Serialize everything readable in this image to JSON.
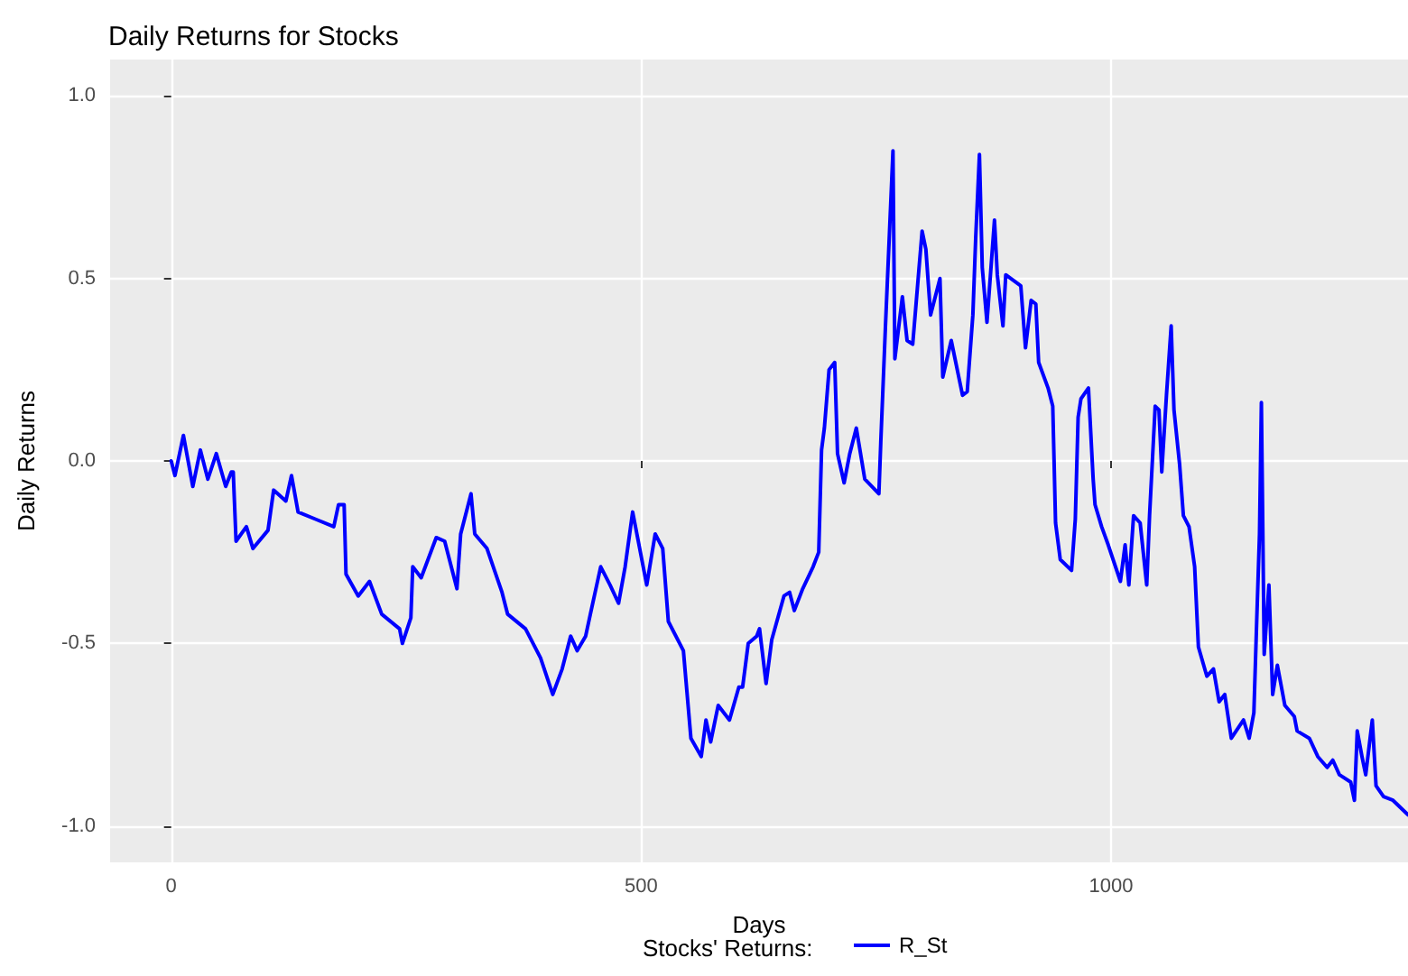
{
  "chart_data": {
    "type": "line",
    "title": "Daily Returns for Stocks",
    "xlabel": "Days",
    "ylabel": "Daily Returns",
    "legend_title": "Stocks' Returns:",
    "legend": "bottom",
    "grid": true,
    "xlim": [
      -65,
      1316
    ],
    "xticks": [
      0,
      500,
      1000
    ],
    "ylim": [
      -1.1,
      1.1
    ],
    "yticks": [
      {
        "value": -1,
        "label": "-1.0"
      },
      {
        "value": -0.5,
        "label": "-0.5"
      },
      {
        "value": 0,
        "label": "0.0"
      },
      {
        "value": 0.5,
        "label": "0.5"
      },
      {
        "value": 1,
        "label": "1.0"
      }
    ],
    "series": [
      {
        "name": "R_St",
        "color": "#0000ff",
        "x": [
          0,
          4,
          13,
          23,
          31,
          39,
          48,
          58,
          64,
          66,
          69,
          80,
          87,
          103,
          109,
          122,
          128,
          135,
          154,
          173,
          178,
          184,
          186,
          199,
          211,
          224,
          243,
          246,
          255,
          257,
          266,
          282,
          291,
          298,
          304,
          308,
          319,
          323,
          336,
          352,
          358,
          377,
          393,
          406,
          416,
          425,
          432,
          441,
          446,
          457,
          467,
          476,
          483,
          491,
          506,
          515,
          523,
          529,
          545,
          550,
          553,
          564,
          569,
          574,
          582,
          594,
          604,
          608,
          614,
          623,
          626,
          633,
          639,
          652,
          658,
          663,
          672,
          683,
          689,
          692,
          695,
          700,
          706,
          709,
          716,
          722,
          729,
          738,
          753,
          755,
          760,
          768,
          770,
          778,
          783,
          789,
          799,
          803,
          808,
          818,
          821,
          830,
          842,
          847,
          853,
          856,
          860,
          863,
          868,
          876,
          879,
          885,
          888,
          904,
          909,
          915,
          920,
          923,
          933,
          938,
          941,
          946,
          958,
          962,
          965,
          968,
          976,
          981,
          983,
          990,
          997,
          1010,
          1015,
          1019,
          1024,
          1031,
          1038,
          1041,
          1047,
          1051,
          1054,
          1059,
          1064,
          1067,
          1073,
          1077,
          1083,
          1089,
          1093,
          1102,
          1109,
          1115,
          1121,
          1128,
          1141,
          1147,
          1152,
          1155,
          1158,
          1160,
          1163,
          1168,
          1172,
          1177,
          1185,
          1195,
          1198,
          1211,
          1220,
          1230,
          1236,
          1243,
          1255,
          1259,
          1262,
          1267,
          1271,
          1278,
          1282,
          1290,
          1300,
          1316
        ],
        "values": [
          0.0,
          -0.04,
          0.07,
          -0.07,
          0.03,
          -0.05,
          0.02,
          -0.07,
          -0.03,
          -0.03,
          -0.22,
          -0.18,
          -0.24,
          -0.19,
          -0.08,
          -0.11,
          -0.04,
          -0.14,
          -0.16,
          -0.18,
          -0.12,
          -0.12,
          -0.31,
          -0.37,
          -0.33,
          -0.42,
          -0.46,
          -0.5,
          -0.43,
          -0.29,
          -0.32,
          -0.21,
          -0.22,
          -0.29,
          -0.35,
          -0.2,
          -0.09,
          -0.2,
          -0.24,
          -0.36,
          -0.42,
          -0.46,
          -0.54,
          -0.64,
          -0.57,
          -0.48,
          -0.52,
          -0.48,
          -0.42,
          -0.29,
          -0.34,
          -0.39,
          -0.29,
          -0.14,
          -0.34,
          -0.2,
          -0.24,
          -0.44,
          -0.52,
          -0.67,
          -0.76,
          -0.81,
          -0.71,
          -0.77,
          -0.67,
          -0.71,
          -0.62,
          -0.62,
          -0.5,
          -0.48,
          -0.46,
          -0.61,
          -0.49,
          -0.37,
          -0.36,
          -0.41,
          -0.35,
          -0.29,
          -0.25,
          0.03,
          0.09,
          0.25,
          0.27,
          0.02,
          -0.06,
          0.02,
          0.09,
          -0.05,
          -0.09,
          0.05,
          0.37,
          0.85,
          0.28,
          0.45,
          0.33,
          0.32,
          0.63,
          0.58,
          0.4,
          0.5,
          0.23,
          0.33,
          0.18,
          0.19,
          0.4,
          0.61,
          0.84,
          0.53,
          0.38,
          0.66,
          0.51,
          0.37,
          0.51,
          0.48,
          0.31,
          0.44,
          0.43,
          0.27,
          0.2,
          0.15,
          -0.17,
          -0.27,
          -0.3,
          -0.16,
          0.12,
          0.17,
          0.2,
          -0.05,
          -0.12,
          -0.18,
          -0.23,
          -0.33,
          -0.23,
          -0.34,
          -0.15,
          -0.17,
          -0.34,
          -0.15,
          0.15,
          0.14,
          -0.03,
          0.18,
          0.37,
          0.14,
          -0.01,
          -0.15,
          -0.18,
          -0.29,
          -0.51,
          -0.59,
          -0.57,
          -0.66,
          -0.64,
          -0.76,
          -0.71,
          -0.76,
          -0.69,
          -0.44,
          -0.2,
          0.16,
          -0.53,
          -0.34,
          -0.64,
          -0.56,
          -0.67,
          -0.7,
          -0.74,
          -0.76,
          -0.81,
          -0.84,
          -0.82,
          -0.86,
          -0.88,
          -0.93,
          -0.74,
          -0.81,
          -0.86,
          -0.71,
          -0.89,
          -0.92,
          -0.93,
          -0.97
        ]
      }
    ]
  }
}
